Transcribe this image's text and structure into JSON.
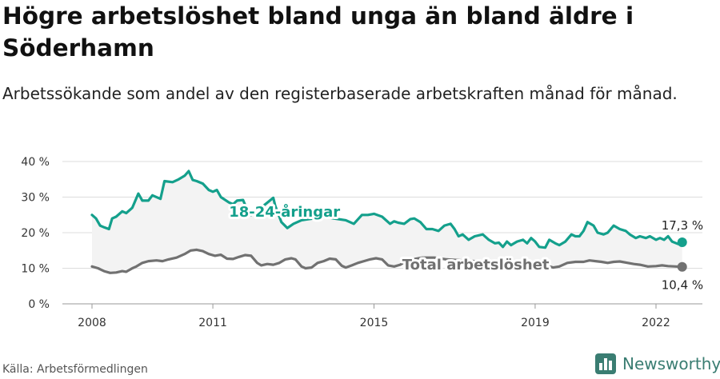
{
  "title": "Högre arbetslöshet bland unga än bland äldre i Söderhamn",
  "subtitle": "Arbetssökande som andel av den registerbaserade arbetskraften månad för månad.",
  "source": "Källa: Arbetsförmedlingen",
  "brand": {
    "name": "Newsworthy",
    "icon": "newsworthy-bar-icon",
    "color": "#3a7d72"
  },
  "chart_data": {
    "type": "line",
    "ylim": [
      0,
      40
    ],
    "yticks": [
      "0 %",
      "10 %",
      "20 %",
      "30 %",
      "40 %"
    ],
    "xlim": [
      2008,
      2023.55
    ],
    "xticks": [
      "2008",
      "2011",
      "2015",
      "2019",
      "2022"
    ],
    "grid": true,
    "series": [
      {
        "name": "18-24-åringar",
        "color": "#14a08c",
        "end_label": "17,3 %",
        "points": [
          [
            2008.0,
            25
          ],
          [
            2008.1,
            24
          ],
          [
            2008.2,
            22
          ],
          [
            2008.3,
            21.5
          ],
          [
            2008.42,
            21
          ],
          [
            2008.5,
            24
          ],
          [
            2008.6,
            24.5
          ],
          [
            2008.75,
            26
          ],
          [
            2008.85,
            25.5
          ],
          [
            2009.0,
            27
          ],
          [
            2009.15,
            31
          ],
          [
            2009.25,
            29
          ],
          [
            2009.4,
            29
          ],
          [
            2009.5,
            30.5
          ],
          [
            2009.7,
            29.5
          ],
          [
            2009.8,
            34.5
          ],
          [
            2010.0,
            34.2
          ],
          [
            2010.15,
            35
          ],
          [
            2010.3,
            36
          ],
          [
            2010.4,
            37.3
          ],
          [
            2010.5,
            34.8
          ],
          [
            2010.6,
            34.5
          ],
          [
            2010.75,
            33.8
          ],
          [
            2010.9,
            32
          ],
          [
            2011.0,
            31.5
          ],
          [
            2011.1,
            32
          ],
          [
            2011.2,
            30
          ],
          [
            2011.4,
            28.5
          ],
          [
            2011.5,
            28
          ],
          [
            2011.6,
            29
          ],
          [
            2011.75,
            29.2
          ],
          [
            2011.85,
            26.5
          ],
          [
            2011.95,
            25
          ],
          [
            2012.1,
            26.5
          ],
          [
            2012.25,
            27.5
          ],
          [
            2012.5,
            29.8
          ],
          [
            2012.55,
            27.5
          ],
          [
            2012.7,
            23
          ],
          [
            2012.85,
            21.3
          ],
          [
            2013.0,
            22.5
          ],
          [
            2013.2,
            23.5
          ],
          [
            2013.5,
            24
          ],
          [
            2013.8,
            24.5
          ],
          [
            2014.0,
            24
          ],
          [
            2014.3,
            23.5
          ],
          [
            2014.5,
            22.5
          ],
          [
            2014.7,
            25
          ],
          [
            2014.85,
            25
          ],
          [
            2015.0,
            25.3
          ],
          [
            2015.2,
            24.5
          ],
          [
            2015.4,
            22.5
          ],
          [
            2015.5,
            23.2
          ],
          [
            2015.6,
            22.8
          ],
          [
            2015.75,
            22.5
          ],
          [
            2015.9,
            23.8
          ],
          [
            2016.0,
            24
          ],
          [
            2016.15,
            23
          ],
          [
            2016.3,
            21
          ],
          [
            2016.45,
            21
          ],
          [
            2016.6,
            20.5
          ],
          [
            2016.75,
            22
          ],
          [
            2016.9,
            22.5
          ],
          [
            2017.0,
            21
          ],
          [
            2017.1,
            19
          ],
          [
            2017.2,
            19.5
          ],
          [
            2017.35,
            18
          ],
          [
            2017.5,
            19
          ],
          [
            2017.7,
            19.5
          ],
          [
            2017.85,
            18
          ],
          [
            2018.0,
            17
          ],
          [
            2018.1,
            17.2
          ],
          [
            2018.2,
            16
          ],
          [
            2018.3,
            17.5
          ],
          [
            2018.4,
            16.5
          ],
          [
            2018.55,
            17.5
          ],
          [
            2018.7,
            18
          ],
          [
            2018.8,
            17
          ],
          [
            2018.9,
            18.5
          ],
          [
            2019.0,
            17.5
          ],
          [
            2019.1,
            16
          ],
          [
            2019.25,
            15.8
          ],
          [
            2019.35,
            18
          ],
          [
            2019.5,
            17
          ],
          [
            2019.6,
            16.5
          ],
          [
            2019.75,
            17.5
          ],
          [
            2019.9,
            19.5
          ],
          [
            2020.0,
            19
          ],
          [
            2020.1,
            19
          ],
          [
            2020.2,
            20.5
          ],
          [
            2020.3,
            23
          ],
          [
            2020.45,
            22
          ],
          [
            2020.55,
            20
          ],
          [
            2020.7,
            19.5
          ],
          [
            2020.8,
            20
          ],
          [
            2020.95,
            22
          ],
          [
            2021.1,
            21
          ],
          [
            2021.25,
            20.5
          ],
          [
            2021.35,
            19.5
          ],
          [
            2021.5,
            18.5
          ],
          [
            2021.6,
            19
          ],
          [
            2021.75,
            18.5
          ],
          [
            2021.85,
            19
          ],
          [
            2022.0,
            18
          ],
          [
            2022.1,
            18.5
          ],
          [
            2022.2,
            18
          ],
          [
            2022.3,
            19
          ],
          [
            2022.4,
            17.5
          ],
          [
            2022.55,
            16.8
          ],
          [
            2022.65,
            17.3
          ]
        ]
      },
      {
        "name": "Total arbetslöshet",
        "color": "#717171",
        "end_label": "10,4 %",
        "points": [
          [
            2008.0,
            10.5
          ],
          [
            2008.15,
            10
          ],
          [
            2008.3,
            9.2
          ],
          [
            2008.45,
            8.7
          ],
          [
            2008.6,
            8.8
          ],
          [
            2008.75,
            9.2
          ],
          [
            2008.85,
            9
          ],
          [
            2009.0,
            10
          ],
          [
            2009.1,
            10.5
          ],
          [
            2009.25,
            11.5
          ],
          [
            2009.4,
            12
          ],
          [
            2009.6,
            12.2
          ],
          [
            2009.75,
            12
          ],
          [
            2009.9,
            12.5
          ],
          [
            2010.1,
            13
          ],
          [
            2010.3,
            14
          ],
          [
            2010.45,
            15
          ],
          [
            2010.6,
            15.2
          ],
          [
            2010.75,
            14.8
          ],
          [
            2010.9,
            14
          ],
          [
            2011.05,
            13.5
          ],
          [
            2011.2,
            13.8
          ],
          [
            2011.35,
            12.7
          ],
          [
            2011.5,
            12.6
          ],
          [
            2011.65,
            13.2
          ],
          [
            2011.8,
            13.7
          ],
          [
            2011.95,
            13.5
          ],
          [
            2012.1,
            11.5
          ],
          [
            2012.2,
            10.8
          ],
          [
            2012.35,
            11.2
          ],
          [
            2012.5,
            11
          ],
          [
            2012.65,
            11.5
          ],
          [
            2012.8,
            12.5
          ],
          [
            2012.95,
            12.8
          ],
          [
            2013.05,
            12.5
          ],
          [
            2013.2,
            10.5
          ],
          [
            2013.3,
            10
          ],
          [
            2013.45,
            10.2
          ],
          [
            2013.6,
            11.5
          ],
          [
            2013.75,
            12
          ],
          [
            2013.9,
            12.7
          ],
          [
            2014.05,
            12.5
          ],
          [
            2014.2,
            10.7
          ],
          [
            2014.3,
            10.2
          ],
          [
            2014.45,
            10.8
          ],
          [
            2014.6,
            11.5
          ],
          [
            2014.75,
            12
          ],
          [
            2014.9,
            12.5
          ],
          [
            2015.05,
            12.8
          ],
          [
            2015.2,
            12.5
          ],
          [
            2015.35,
            10.8
          ],
          [
            2015.5,
            10.5
          ],
          [
            2015.65,
            11
          ],
          [
            2015.8,
            12
          ],
          [
            2015.95,
            12.5
          ],
          [
            2016.2,
            13
          ],
          [
            2016.5,
            13
          ],
          [
            2016.8,
            12.5
          ],
          [
            2017.1,
            12.3
          ],
          [
            2017.5,
            12
          ],
          [
            2017.9,
            11.5
          ],
          [
            2018.3,
            11.3
          ],
          [
            2018.7,
            11
          ],
          [
            2019.1,
            10.8
          ],
          [
            2019.3,
            10.7
          ],
          [
            2019.45,
            10.2
          ],
          [
            2019.6,
            10.5
          ],
          [
            2019.8,
            11.5
          ],
          [
            2020.0,
            11.8
          ],
          [
            2020.2,
            11.8
          ],
          [
            2020.35,
            12.2
          ],
          [
            2020.5,
            12
          ],
          [
            2020.65,
            11.8
          ],
          [
            2020.8,
            11.5
          ],
          [
            2020.95,
            11.8
          ],
          [
            2021.1,
            11.9
          ],
          [
            2021.3,
            11.5
          ],
          [
            2021.45,
            11.2
          ],
          [
            2021.6,
            11
          ],
          [
            2021.8,
            10.5
          ],
          [
            2022.0,
            10.6
          ],
          [
            2022.15,
            10.8
          ],
          [
            2022.3,
            10.6
          ],
          [
            2022.5,
            10.5
          ],
          [
            2022.65,
            10.4
          ]
        ]
      }
    ]
  }
}
